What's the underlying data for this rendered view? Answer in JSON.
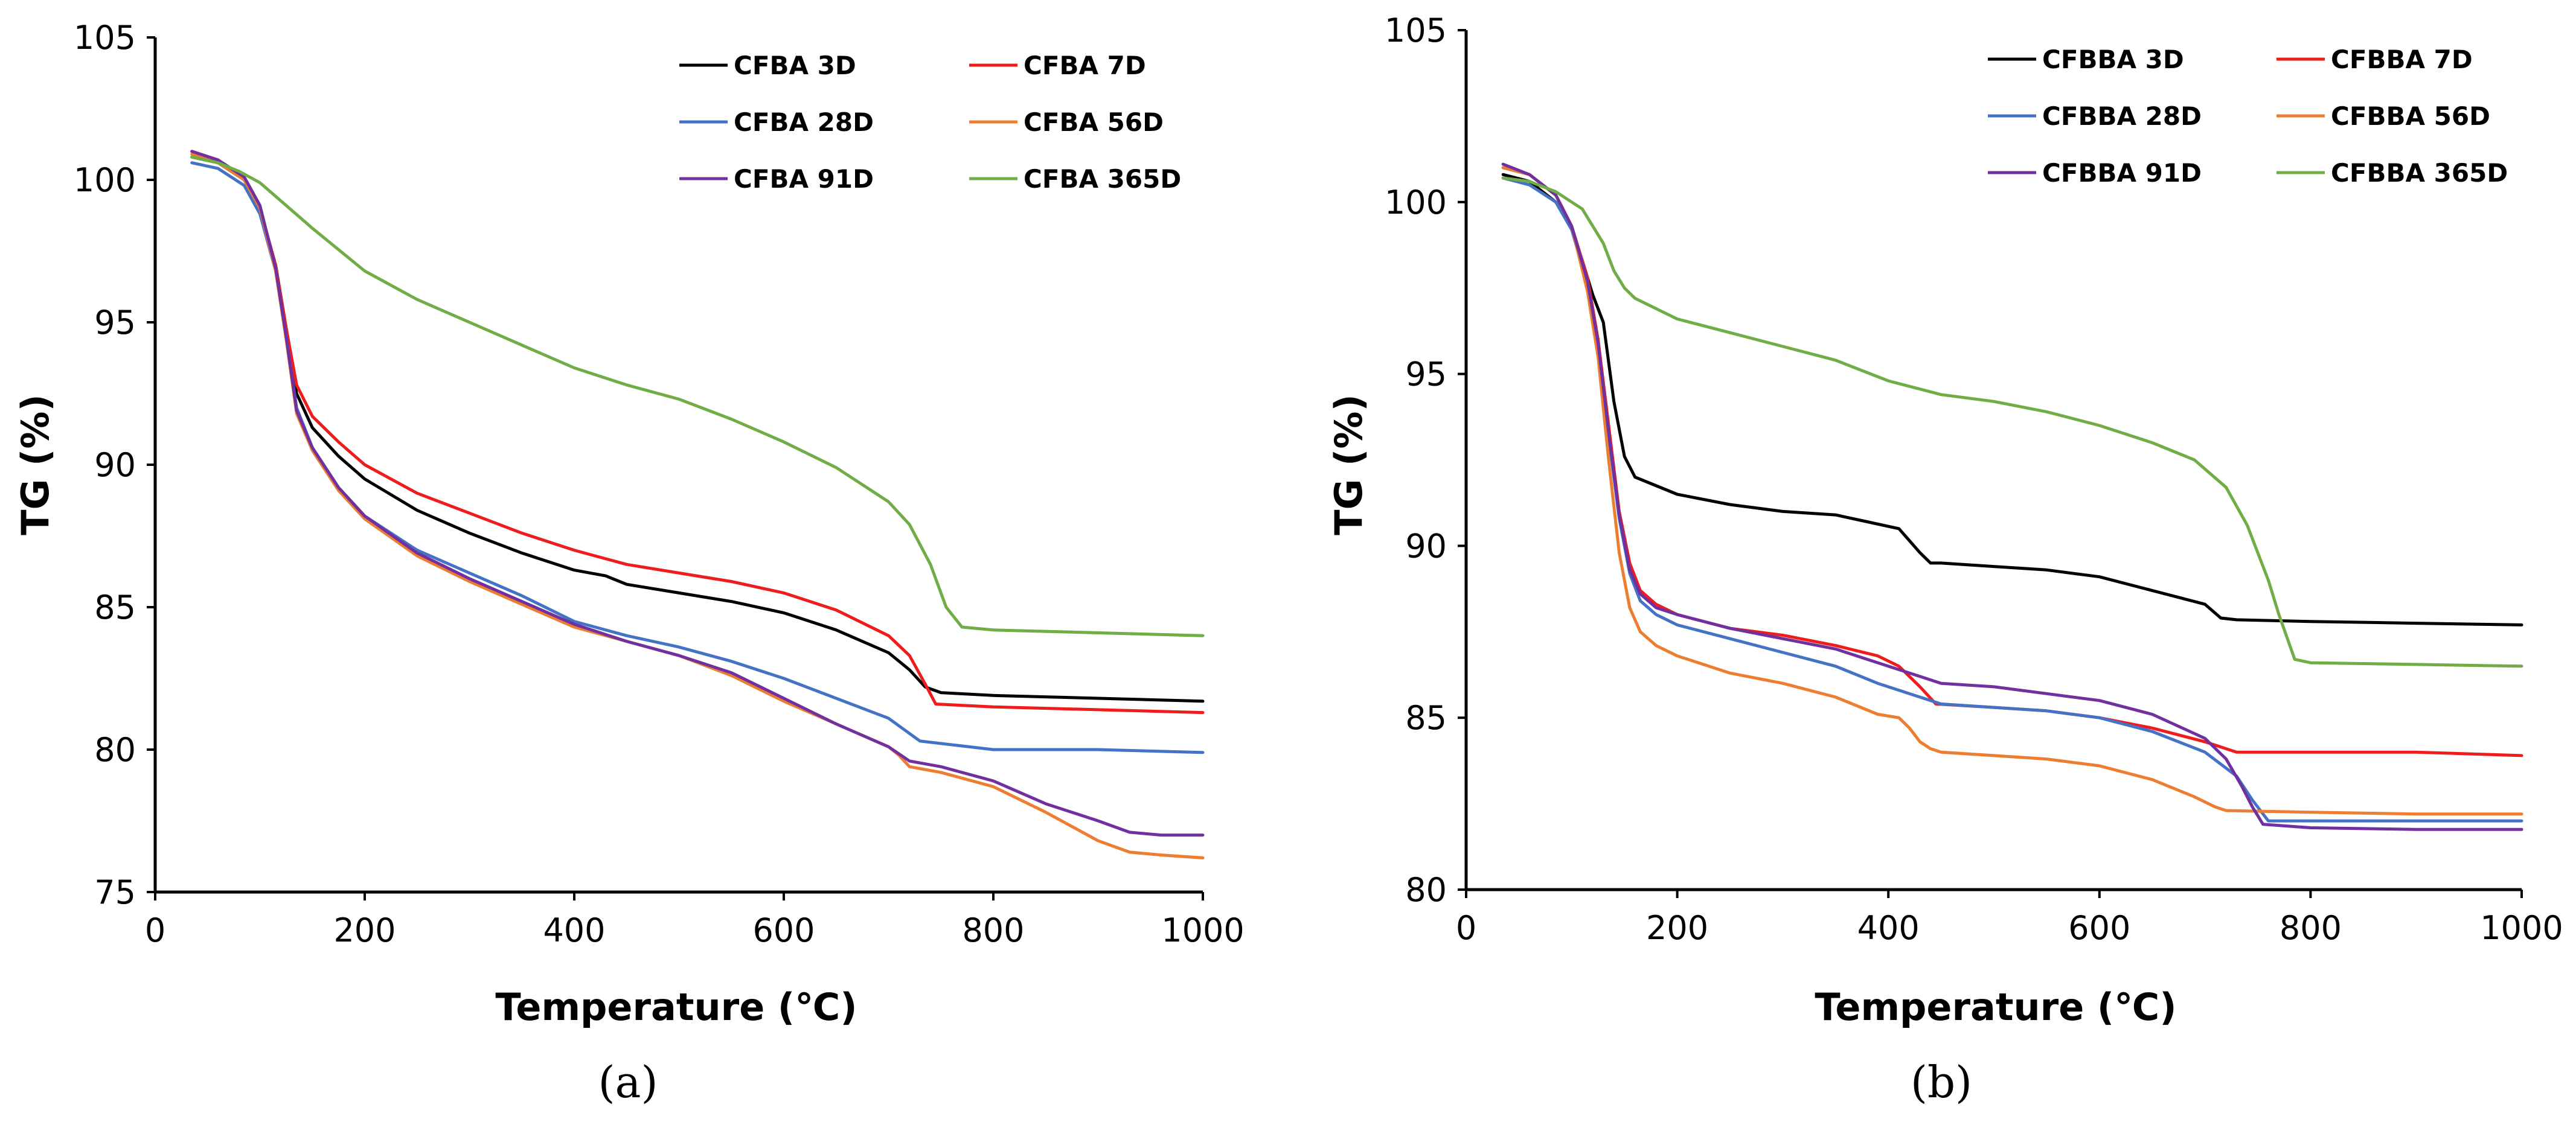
{
  "chart_data": [
    {
      "type": "line",
      "caption": "(a)",
      "xlabel": "Temperature (℃)",
      "ylabel": "TG (%)",
      "xlim": [
        0,
        1000
      ],
      "ylim": [
        75,
        105
      ],
      "xticks": [
        0,
        200,
        400,
        600,
        800,
        1000
      ],
      "yticks": [
        75,
        80,
        85,
        90,
        95,
        100,
        105
      ],
      "grid": false,
      "legend_position": "top-right",
      "series": [
        {
          "name": "CFBA 3D",
          "color": "#000000",
          "x": [
            35,
            60,
            85,
            100,
            115,
            125,
            135,
            150,
            175,
            200,
            250,
            300,
            350,
            400,
            430,
            450,
            500,
            550,
            600,
            650,
            700,
            720,
            735,
            750,
            800,
            900,
            1000
          ],
          "y": [
            100.8,
            100.6,
            100.0,
            99.0,
            97.0,
            94.8,
            92.5,
            91.3,
            90.3,
            89.5,
            88.4,
            87.6,
            86.9,
            86.3,
            86.1,
            85.8,
            85.5,
            85.2,
            84.8,
            84.2,
            83.4,
            82.8,
            82.2,
            82.0,
            81.9,
            81.8,
            81.7
          ]
        },
        {
          "name": "CFBA 7D",
          "color": "#ee1c1c",
          "x": [
            35,
            60,
            85,
            100,
            115,
            125,
            135,
            150,
            175,
            200,
            250,
            300,
            350,
            400,
            450,
            500,
            550,
            600,
            650,
            700,
            720,
            735,
            745,
            800,
            900,
            1000
          ],
          "y": [
            101.0,
            100.7,
            100.0,
            99.0,
            97.0,
            94.8,
            92.8,
            91.7,
            90.8,
            90.0,
            89.0,
            88.3,
            87.6,
            87.0,
            86.5,
            86.2,
            85.9,
            85.5,
            84.9,
            84.0,
            83.3,
            82.3,
            81.6,
            81.5,
            81.4,
            81.3
          ]
        },
        {
          "name": "CFBA 28D",
          "color": "#4472c4",
          "x": [
            35,
            60,
            85,
            100,
            115,
            125,
            135,
            150,
            175,
            200,
            250,
            300,
            350,
            400,
            450,
            500,
            550,
            600,
            650,
            700,
            715,
            730,
            800,
            900,
            1000
          ],
          "y": [
            100.6,
            100.4,
            99.8,
            98.8,
            96.8,
            94.5,
            92.0,
            90.6,
            89.2,
            88.2,
            87.0,
            86.2,
            85.4,
            84.5,
            84.0,
            83.6,
            83.1,
            82.5,
            81.8,
            81.1,
            80.7,
            80.3,
            80.0,
            80.0,
            79.9
          ]
        },
        {
          "name": "CFBA 56D",
          "color": "#ed7d31",
          "x": [
            35,
            60,
            85,
            100,
            115,
            125,
            135,
            150,
            175,
            200,
            250,
            300,
            350,
            400,
            450,
            500,
            550,
            600,
            650,
            700,
            710,
            720,
            750,
            800,
            850,
            900,
            930,
            960,
            1000
          ],
          "y": [
            100.9,
            100.6,
            100.0,
            99.0,
            96.8,
            94.4,
            91.8,
            90.5,
            89.1,
            88.1,
            86.8,
            85.9,
            85.1,
            84.3,
            83.8,
            83.3,
            82.6,
            81.7,
            80.9,
            80.1,
            79.8,
            79.4,
            79.2,
            78.7,
            77.8,
            76.8,
            76.4,
            76.3,
            76.2
          ]
        },
        {
          "name": "CFBA 91D",
          "color": "#7030a0",
          "x": [
            35,
            60,
            85,
            100,
            115,
            125,
            135,
            150,
            175,
            200,
            250,
            300,
            350,
            400,
            450,
            500,
            550,
            600,
            650,
            700,
            720,
            750,
            800,
            850,
            900,
            930,
            960,
            1000
          ],
          "y": [
            101.0,
            100.7,
            100.1,
            99.1,
            96.9,
            94.5,
            91.9,
            90.6,
            89.2,
            88.2,
            86.9,
            86.0,
            85.2,
            84.4,
            83.8,
            83.3,
            82.7,
            81.8,
            80.9,
            80.1,
            79.6,
            79.4,
            78.9,
            78.1,
            77.5,
            77.1,
            77.0,
            77.0
          ]
        },
        {
          "name": "CFBA 365D",
          "color": "#70ad47",
          "x": [
            35,
            60,
            80,
            100,
            150,
            200,
            250,
            300,
            350,
            400,
            450,
            500,
            550,
            600,
            650,
            700,
            720,
            740,
            755,
            770,
            800,
            900,
            1000
          ],
          "y": [
            100.8,
            100.6,
            100.3,
            99.9,
            98.3,
            96.8,
            95.8,
            95.0,
            94.2,
            93.4,
            92.8,
            92.3,
            91.6,
            90.8,
            89.9,
            88.7,
            87.9,
            86.5,
            85.0,
            84.3,
            84.2,
            84.1,
            84.0
          ]
        }
      ]
    },
    {
      "type": "line",
      "caption": "(b)",
      "xlabel": "Temperature (℃)",
      "ylabel": "TG (%)",
      "xlim": [
        0,
        1000
      ],
      "ylim": [
        80,
        105
      ],
      "xticks": [
        0,
        200,
        400,
        600,
        800,
        1000
      ],
      "yticks": [
        80,
        85,
        90,
        95,
        100,
        105
      ],
      "grid": false,
      "legend_position": "top-right",
      "series": [
        {
          "name": "CFBBA 3D",
          "color": "#000000",
          "x": [
            35,
            60,
            85,
            100,
            110,
            120,
            130,
            140,
            150,
            160,
            200,
            250,
            300,
            350,
            380,
            410,
            430,
            440,
            450,
            500,
            550,
            600,
            650,
            700,
            715,
            730,
            800,
            900,
            1000
          ],
          "y": [
            100.8,
            100.6,
            100.0,
            99.2,
            98.3,
            97.3,
            96.5,
            94.2,
            92.6,
            92.0,
            91.5,
            91.2,
            91.0,
            90.9,
            90.7,
            90.5,
            89.8,
            89.5,
            89.5,
            89.4,
            89.3,
            89.1,
            88.7,
            88.3,
            87.9,
            87.85,
            87.8,
            87.75,
            87.7
          ]
        },
        {
          "name": "CFBBA 7D",
          "color": "#ee1c1c",
          "x": [
            35,
            60,
            85,
            100,
            115,
            125,
            135,
            145,
            155,
            165,
            180,
            200,
            250,
            300,
            350,
            390,
            410,
            430,
            445,
            500,
            550,
            600,
            650,
            700,
            730,
            760,
            800,
            900,
            1000
          ],
          "y": [
            101.0,
            100.8,
            100.2,
            99.3,
            97.8,
            96.0,
            93.5,
            91.0,
            89.5,
            88.7,
            88.3,
            88.0,
            87.6,
            87.4,
            87.1,
            86.8,
            86.5,
            85.9,
            85.4,
            85.3,
            85.2,
            85.0,
            84.7,
            84.3,
            84.0,
            84.0,
            84.0,
            84.0,
            83.9
          ]
        },
        {
          "name": "CFBBA 28D",
          "color": "#4472c4",
          "x": [
            35,
            60,
            85,
            100,
            115,
            125,
            135,
            145,
            155,
            165,
            180,
            200,
            250,
            300,
            350,
            390,
            430,
            450,
            500,
            550,
            600,
            650,
            700,
            730,
            745,
            760,
            800,
            900,
            1000
          ],
          "y": [
            100.7,
            100.5,
            100.0,
            99.2,
            97.6,
            95.8,
            93.2,
            90.8,
            89.2,
            88.4,
            88.0,
            87.7,
            87.3,
            86.9,
            86.5,
            86.0,
            85.6,
            85.4,
            85.3,
            85.2,
            85.0,
            84.6,
            84.0,
            83.3,
            82.6,
            82.0,
            82.0,
            82.0,
            82.0
          ]
        },
        {
          "name": "CFBBA 56D",
          "color": "#ed7d31",
          "x": [
            35,
            60,
            85,
            100,
            115,
            125,
            135,
            145,
            155,
            165,
            180,
            200,
            250,
            300,
            350,
            390,
            410,
            420,
            430,
            440,
            450,
            500,
            550,
            600,
            650,
            690,
            710,
            720,
            800,
            900,
            1000
          ],
          "y": [
            101.0,
            100.8,
            100.2,
            99.3,
            97.4,
            95.5,
            92.5,
            89.8,
            88.2,
            87.5,
            87.1,
            86.8,
            86.3,
            86.0,
            85.6,
            85.1,
            85.0,
            84.7,
            84.3,
            84.1,
            84.0,
            83.9,
            83.8,
            83.6,
            83.2,
            82.7,
            82.4,
            82.3,
            82.25,
            82.2,
            82.2
          ]
        },
        {
          "name": "CFBBA 91D",
          "color": "#7030a0",
          "x": [
            35,
            60,
            85,
            100,
            115,
            125,
            135,
            145,
            155,
            165,
            180,
            200,
            250,
            300,
            350,
            390,
            430,
            450,
            500,
            550,
            600,
            650,
            700,
            720,
            735,
            745,
            755,
            800,
            900,
            1000
          ],
          "y": [
            101.1,
            100.8,
            100.2,
            99.3,
            97.7,
            95.9,
            93.3,
            90.9,
            89.3,
            88.6,
            88.2,
            88.0,
            87.6,
            87.3,
            87.0,
            86.6,
            86.2,
            86.0,
            85.9,
            85.7,
            85.5,
            85.1,
            84.4,
            83.8,
            83.0,
            82.4,
            81.9,
            81.8,
            81.75,
            81.75
          ]
        },
        {
          "name": "CFBBA 365D",
          "color": "#70ad47",
          "x": [
            35,
            60,
            85,
            110,
            130,
            140,
            150,
            160,
            200,
            250,
            300,
            350,
            400,
            450,
            500,
            550,
            600,
            650,
            690,
            720,
            740,
            760,
            770,
            785,
            800,
            900,
            1000
          ],
          "y": [
            100.7,
            100.6,
            100.3,
            99.8,
            98.8,
            98.0,
            97.5,
            97.2,
            96.6,
            96.2,
            95.8,
            95.4,
            94.8,
            94.4,
            94.2,
            93.9,
            93.5,
            93.0,
            92.5,
            91.7,
            90.6,
            89.0,
            88.0,
            86.7,
            86.6,
            86.55,
            86.5
          ]
        }
      ]
    }
  ]
}
